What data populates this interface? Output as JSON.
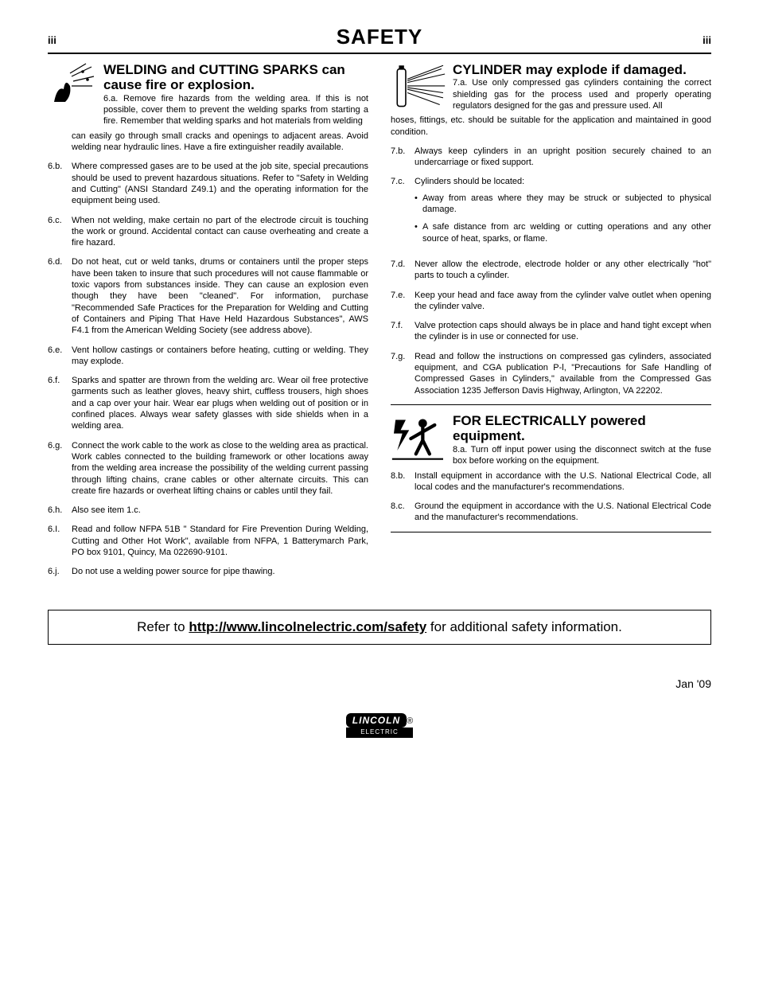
{
  "page": {
    "num_left": "iii",
    "num_right": "iii",
    "title": "SAFETY"
  },
  "left": {
    "heading": "WELDING and CUTTING SPARKS can cause fire or explosion.",
    "lead_label": "6.a.",
    "lead": "Remove fire hazards from the welding area. If this is not possible, cover them to prevent the welding sparks from starting a fire. Remember that welding sparks and hot materials from welding can easily go through small cracks and openings to adjacent areas. Avoid welding near hydraulic lines. Have a fire extinguisher readily available.",
    "items": [
      {
        "label": "6.b.",
        "text": "Where compressed gases are to be used at the job site, special precautions should be used to prevent hazardous situations. Refer to \"Safety in Welding and Cutting\" (ANSI Standard Z49.1) and the operating information for the equipment being used."
      },
      {
        "label": "6.c.",
        "text": "When not welding, make certain no part of the electrode circuit is touching the work or ground. Accidental contact can cause overheating and create a fire hazard."
      },
      {
        "label": "6.d.",
        "text": "Do not heat, cut or weld tanks, drums or containers until the proper steps have been taken to insure that such procedures will not cause flammable or toxic vapors from substances inside. They can cause an explosion even though they have been \"cleaned\". For information, purchase \"Recommended Safe Practices for the Preparation for Welding and Cutting of Containers and Piping That Have Held Hazardous Substances\", AWS F4.1 from the American Welding Society (see address above)."
      },
      {
        "label": "6.e.",
        "text": "Vent hollow castings or containers before heating, cutting or welding. They may explode."
      },
      {
        "label": "6.f.",
        "text": "Sparks and spatter are thrown from the welding arc. Wear oil free protective garments such as leather gloves, heavy shirt, cuffless trousers, high shoes and a cap over your hair. Wear ear plugs when welding out of position or in confined places. Always wear safety glasses with side shields when in a welding area."
      },
      {
        "label": "6.g.",
        "text": "Connect the work cable to the work as close to the welding area as practical. Work cables connected to the building framework or other locations away from the welding area increase the possibility of the welding current passing through lifting chains, crane cables or other alternate circuits. This can create fire hazards or overheat lifting chains or cables until they fail."
      },
      {
        "label": "6.h.",
        "text": "Also see item 1.c."
      },
      {
        "label": "6.I.",
        "text": "Read and follow NFPA 51B \" Standard for Fire Prevention During Welding, Cutting and Other Hot Work\", available from NFPA, 1 Batterymarch Park, PO box 9101, Quincy, Ma 022690-9101."
      },
      {
        "label": "6.j.",
        "text": "Do not use a welding power source for pipe thawing."
      }
    ]
  },
  "right_a": {
    "heading": "CYLINDER may explode if damaged.",
    "lead_label": "7.a.",
    "lead": "Use only compressed gas cylinders containing the correct shielding gas for the process used and properly operating regulators designed for the gas and pressure used. All hoses, fittings, etc. should be suitable for the application and maintained in good condition.",
    "items": [
      {
        "label": "7.b.",
        "text": "Always keep cylinders in an upright position securely chained to an undercarriage or fixed support."
      },
      {
        "label": "7.c.",
        "text": "Cylinders should be located:",
        "bullets": [
          "Away from areas where they may be struck or subjected to physical damage.",
          "A safe distance from arc welding or cutting operations and any other source of heat, sparks, or flame."
        ]
      },
      {
        "label": "7.d.",
        "text": "Never allow the electrode, electrode holder or any other electrically \"hot\" parts to touch a cylinder."
      },
      {
        "label": "7.e.",
        "text": "Keep your head and face away from the cylinder valve outlet when opening the cylinder valve."
      },
      {
        "label": "7.f.",
        "text": "Valve protection caps should always be in place and hand tight except when the cylinder is in use or connected for use."
      },
      {
        "label": "7.g.",
        "text": "Read and follow the instructions on compressed gas cylinders, associated equipment, and CGA publication P-l, \"Precautions for Safe Handling of Compressed Gases in Cylinders,\" available from the Compressed Gas Association 1235 Jefferson Davis Highway, Arlington, VA 22202."
      }
    ]
  },
  "right_b": {
    "heading": "FOR ELECTRICALLY powered equipment.",
    "lead_label": "8.a.",
    "lead": "Turn off input power using the disconnect switch at the fuse box before working on the equipment.",
    "items": [
      {
        "label": "8.b.",
        "text": "Install equipment in accordance with the U.S. National Electrical Code, all local codes and the manufacturer's recommendations."
      },
      {
        "label": "8.c.",
        "text": "Ground the equipment in accordance with the U.S. National Electrical Code and the manufacturer's recommendations."
      }
    ]
  },
  "footer": {
    "pre": "Refer to ",
    "link": "http://www.lincolnelectric.com/safety",
    "post": " for additional safety information."
  },
  "date": "Jan '09",
  "logo": {
    "top": "LINCOLN",
    "bot": "ELECTRIC"
  }
}
